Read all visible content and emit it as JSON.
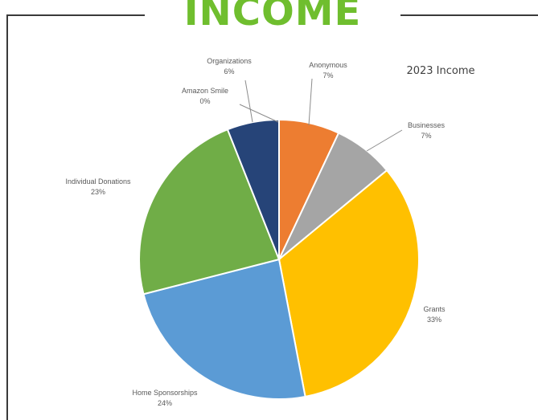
{
  "page": {
    "heading": "INCOME"
  },
  "colors": {
    "heading": "#6fbe2e",
    "frame": "#3a3a3a"
  },
  "chart_data": {
    "type": "pie",
    "title": "2023 Income",
    "start_angle_deg": 0,
    "direction": "clockwise",
    "slices": [
      {
        "category": "Anonymous",
        "label": "7%",
        "value": 7,
        "color": "#ed7d31"
      },
      {
        "category": "Businesses",
        "label": "7%",
        "value": 7,
        "color": "#a5a5a5"
      },
      {
        "category": "Grants",
        "label": "33%",
        "value": 33,
        "color": "#ffc000"
      },
      {
        "category": "Home Sponsorships",
        "label": "24%",
        "value": 24,
        "color": "#5b9bd5"
      },
      {
        "category": "Individual Donations",
        "label": "23%",
        "value": 23,
        "color": "#70ad47"
      },
      {
        "category": "Amazon Smile",
        "label": "0%",
        "value": 0,
        "color": "#4472c4"
      },
      {
        "category": "Organizations",
        "label": "6%",
        "value": 6,
        "color": "#264478"
      }
    ]
  }
}
